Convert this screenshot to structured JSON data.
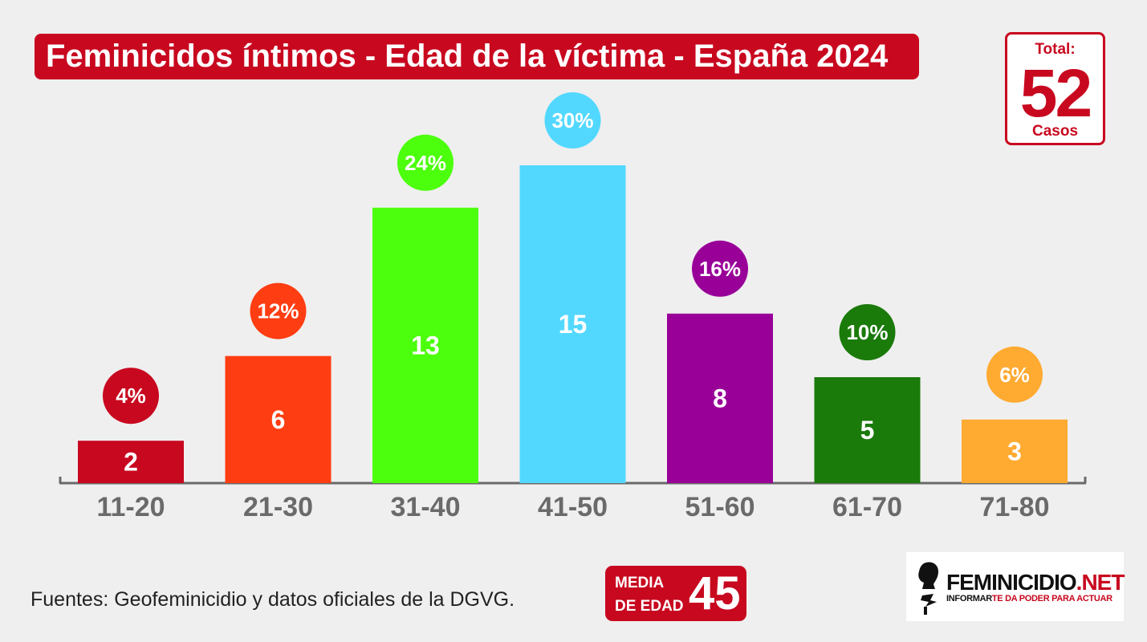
{
  "title": "Feminicidos íntimos - Edad de la víctima - España 2024",
  "total": {
    "label": "Total:",
    "value": "52",
    "unit": "Casos"
  },
  "chart_data": {
    "type": "bar",
    "categories": [
      "11-20",
      "21-30",
      "31-40",
      "41-50",
      "51-60",
      "61-70",
      "71-80"
    ],
    "values": [
      2,
      6,
      13,
      15,
      8,
      5,
      3
    ],
    "percent_labels": [
      "4%",
      "12%",
      "24%",
      "30%",
      "16%",
      "10%",
      "6%"
    ],
    "colors": [
      "#c8081f",
      "#ff3d12",
      "#4cff0c",
      "#52d8ff",
      "#980098",
      "#1a7a0a",
      "#ffaa30"
    ],
    "title": "Feminicidos íntimos - Edad de la víctima - España 2024",
    "xlabel": "",
    "ylabel": "",
    "ylim": [
      0,
      15
    ],
    "grid": false,
    "legend": "none"
  },
  "source": "Fuentes: Geofeminicidio y datos oficiales de la DGVG.",
  "media": {
    "line1": "MEDIA",
    "line2": "DE EDAD",
    "value": "45"
  },
  "logo": {
    "name_main": "FEMINICIDIO",
    "name_suffix": ".NET",
    "tag_a": "INFORMAR",
    "tag_b": "TE DA PODER PARA ACTUAR"
  }
}
